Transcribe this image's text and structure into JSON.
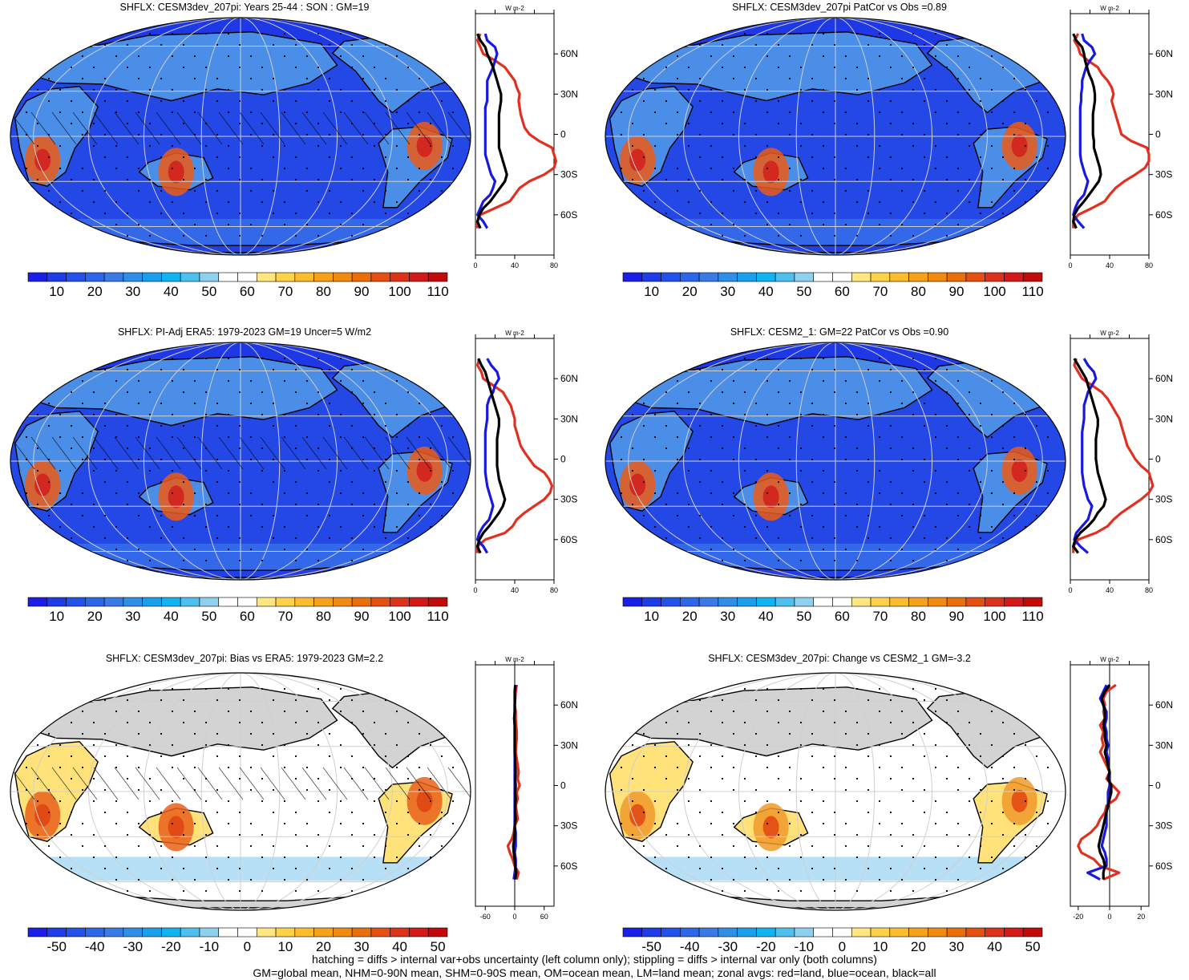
{
  "colors": {
    "seq": [
      "#1a1ee6",
      "#1e3ce8",
      "#2352ea",
      "#2d66e8",
      "#3a7ae6",
      "#2f8ee6",
      "#1aa0ea",
      "#10b4f0",
      "#4ec0ee",
      "#8ed0ee",
      "#ffffff",
      "#ffffff",
      "#ffe680",
      "#ffd24a",
      "#fbbd2e",
      "#f5a21a",
      "#f08a10",
      "#ea6e0a",
      "#e45012",
      "#dc321a",
      "#d21a1a",
      "#c20a0a"
    ],
    "div": [
      "#1a1ee6",
      "#1e3ce8",
      "#2352ea",
      "#2d66e8",
      "#3a7ae6",
      "#2f8ee6",
      "#1aa0ea",
      "#10b4f0",
      "#4ec0ee",
      "#8ed0ee",
      "#ffffff",
      "#ffffff",
      "#ffe680",
      "#ffd24a",
      "#fbbd2e",
      "#f5a21a",
      "#f08a10",
      "#ea6e0a",
      "#e45012",
      "#dc321a",
      "#d21a1a",
      "#c20a0a"
    ],
    "land": "#e23020",
    "ocean": "#1818e0",
    "all": "#000000"
  },
  "footer": {
    "line1": "hatching = diffs > internal var+obs uncertainty (left column only); stippling = diffs > internal var only (both columns)",
    "line2": "GM=global mean, NHM=0-90N mean, SHM=0-90S mean, OM=ocean mean, LM=land mean; zonal avgs: red=land, blue=ocean, black=all"
  },
  "chart_data": [
    {
      "type": "heatmap",
      "title": "SHFLX: CESM3dev_207pi: Years 25-44 : SON : GM=19",
      "colorbar_ticks": [
        "10",
        "20",
        "30",
        "40",
        "50",
        "60",
        "70",
        "80",
        "90",
        "100",
        "110"
      ],
      "zonal_unit": "W m-2",
      "lat_ticks": [
        "60N",
        "30N",
        "0",
        "30S",
        "60S"
      ],
      "zonal_xticks": [
        "0",
        "40",
        "80"
      ],
      "zonal_xlim": [
        0,
        80
      ],
      "lats": [
        75,
        70,
        65,
        60,
        55,
        50,
        45,
        40,
        35,
        30,
        25,
        20,
        15,
        10,
        5,
        0,
        -5,
        -10,
        -15,
        -20,
        -25,
        -30,
        -35,
        -40,
        -45,
        -50,
        -55,
        -60,
        -65,
        -70
      ],
      "series": [
        {
          "name": "red=land",
          "values": [
            5,
            2,
            5,
            8,
            20,
            30,
            35,
            40,
            42,
            45,
            44,
            45,
            46,
            48,
            50,
            55,
            65,
            78,
            80,
            82,
            80,
            70,
            55,
            45,
            40,
            35,
            20,
            5,
            2,
            2
          ]
        },
        {
          "name": "blue=ocean",
          "values": [
            10,
            12,
            20,
            22,
            20,
            18,
            15,
            12,
            12,
            12,
            12,
            10,
            10,
            10,
            10,
            10,
            10,
            10,
            10,
            12,
            14,
            16,
            20,
            18,
            15,
            8,
            5,
            2,
            8,
            12
          ]
        },
        {
          "name": "black=all",
          "values": [
            2,
            5,
            10,
            12,
            15,
            18,
            20,
            22,
            24,
            26,
            26,
            25,
            24,
            24,
            24,
            24,
            24,
            24,
            26,
            28,
            30,
            32,
            30,
            25,
            20,
            15,
            8,
            4,
            2,
            5
          ]
        }
      ]
    },
    {
      "type": "heatmap",
      "title": "SHFLX: CESM3dev_207pi PatCor vs Obs =0.89",
      "colorbar_ticks": [
        "10",
        "20",
        "30",
        "40",
        "50",
        "60",
        "70",
        "80",
        "90",
        "100",
        "110"
      ],
      "zonal_unit": "W m-2",
      "lat_ticks": [
        "60N",
        "30N",
        "0",
        "30S",
        "60S"
      ],
      "zonal_xticks": [
        "0",
        "40",
        "80"
      ],
      "zonal_xlim": [
        0,
        80
      ],
      "lats": [
        75,
        70,
        65,
        60,
        55,
        50,
        45,
        40,
        35,
        30,
        25,
        20,
        15,
        10,
        5,
        0,
        -5,
        -10,
        -15,
        -20,
        -25,
        -30,
        -35,
        -40,
        -45,
        -50,
        -55,
        -60,
        -65,
        -70
      ],
      "series": [
        {
          "name": "red=land",
          "values": [
            8,
            4,
            8,
            10,
            18,
            28,
            32,
            38,
            42,
            44,
            42,
            44,
            46,
            48,
            50,
            52,
            62,
            78,
            80,
            80,
            76,
            66,
            55,
            46,
            40,
            35,
            22,
            8,
            3,
            3
          ]
        },
        {
          "name": "blue=ocean",
          "values": [
            12,
            14,
            22,
            25,
            20,
            16,
            14,
            12,
            12,
            11,
            11,
            10,
            10,
            10,
            10,
            10,
            10,
            10,
            10,
            11,
            13,
            15,
            18,
            16,
            14,
            8,
            5,
            3,
            8,
            14
          ]
        },
        {
          "name": "black=all",
          "values": [
            3,
            6,
            12,
            14,
            15,
            17,
            19,
            22,
            24,
            25,
            25,
            24,
            23,
            23,
            23,
            23,
            24,
            24,
            26,
            28,
            30,
            31,
            29,
            24,
            19,
            14,
            8,
            4,
            3,
            6
          ]
        }
      ]
    },
    {
      "type": "heatmap",
      "title": "SHFLX: PI-Adj ERA5: 1979-2023 GM=19 Uncer=5 W/m2",
      "colorbar_ticks": [
        "10",
        "20",
        "30",
        "40",
        "50",
        "60",
        "70",
        "80",
        "90",
        "100",
        "110"
      ],
      "zonal_unit": "W m-2",
      "lat_ticks": [
        "60N",
        "30N",
        "0",
        "30S",
        "60S"
      ],
      "zonal_xticks": [
        "0",
        "40",
        "80"
      ],
      "zonal_xlim": [
        0,
        80
      ],
      "lats": [
        75,
        70,
        65,
        60,
        55,
        50,
        45,
        40,
        35,
        30,
        25,
        20,
        15,
        10,
        5,
        0,
        -5,
        -10,
        -15,
        -20,
        -25,
        -30,
        -35,
        -40,
        -45,
        -50,
        -55,
        -60,
        -65,
        -70
      ],
      "series": [
        {
          "name": "red=land",
          "values": [
            4,
            2,
            6,
            8,
            18,
            28,
            32,
            36,
            38,
            40,
            40,
            42,
            44,
            46,
            50,
            55,
            60,
            70,
            75,
            78,
            76,
            70,
            60,
            50,
            42,
            38,
            30,
            10,
            2,
            2
          ]
        },
        {
          "name": "blue=ocean",
          "values": [
            12,
            16,
            22,
            24,
            20,
            18,
            14,
            12,
            12,
            12,
            11,
            10,
            10,
            10,
            10,
            10,
            10,
            10,
            11,
            12,
            14,
            16,
            18,
            16,
            14,
            8,
            4,
            2,
            8,
            12
          ]
        },
        {
          "name": "black=all",
          "values": [
            3,
            6,
            10,
            12,
            14,
            16,
            18,
            20,
            22,
            24,
            24,
            23,
            22,
            22,
            22,
            22,
            22,
            23,
            24,
            26,
            28,
            30,
            28,
            24,
            19,
            14,
            8,
            4,
            2,
            5
          ]
        }
      ]
    },
    {
      "type": "heatmap",
      "title": "SHFLX: CESM2_1: GM=22 PatCor vs Obs =0.90",
      "colorbar_ticks": [
        "10",
        "20",
        "30",
        "40",
        "50",
        "60",
        "70",
        "80",
        "90",
        "100",
        "110"
      ],
      "zonal_unit": "W m-2",
      "lat_ticks": [
        "60N",
        "30N",
        "0",
        "30S",
        "60S"
      ],
      "zonal_xticks": [
        "0",
        "40",
        "80"
      ],
      "zonal_xlim": [
        0,
        80
      ],
      "lats": [
        75,
        70,
        65,
        60,
        55,
        50,
        45,
        40,
        35,
        30,
        25,
        20,
        15,
        10,
        5,
        0,
        -5,
        -10,
        -15,
        -20,
        -25,
        -30,
        -35,
        -40,
        -45,
        -50,
        -55,
        -60,
        -65,
        -70
      ],
      "series": [
        {
          "name": "red=land",
          "values": [
            6,
            4,
            8,
            12,
            22,
            32,
            38,
            42,
            46,
            50,
            52,
            54,
            56,
            58,
            62,
            66,
            72,
            80,
            82,
            84,
            80,
            72,
            62,
            52,
            44,
            38,
            26,
            8,
            3,
            3
          ]
        },
        {
          "name": "blue=ocean",
          "values": [
            14,
            18,
            24,
            26,
            22,
            18,
            16,
            14,
            14,
            14,
            13,
            12,
            12,
            12,
            12,
            12,
            12,
            12,
            13,
            14,
            16,
            18,
            22,
            20,
            18,
            12,
            6,
            4,
            10,
            18
          ]
        },
        {
          "name": "black=all",
          "values": [
            4,
            8,
            12,
            16,
            18,
            20,
            22,
            24,
            26,
            28,
            28,
            27,
            26,
            26,
            26,
            26,
            27,
            28,
            30,
            32,
            34,
            36,
            34,
            28,
            24,
            18,
            10,
            5,
            3,
            8
          ]
        }
      ]
    },
    {
      "type": "heatmap",
      "title": "SHFLX: CESM3dev_207pi: Bias vs ERA5: 1979-2023  GM=2.2",
      "colorbar_ticks": [
        "-50",
        "-40",
        "-30",
        "-20",
        "-10",
        "0",
        "10",
        "20",
        "30",
        "40",
        "50"
      ],
      "zonal_unit": "W m-2",
      "lat_ticks": [
        "60N",
        "30N",
        "0",
        "30S",
        "60S"
      ],
      "zonal_xticks": [
        "-60",
        "0",
        "60"
      ],
      "zonal_xlim": [
        -80,
        80
      ],
      "lats": [
        75,
        70,
        65,
        60,
        55,
        50,
        45,
        40,
        35,
        30,
        25,
        20,
        15,
        10,
        5,
        0,
        -5,
        -10,
        -15,
        -20,
        -25,
        -30,
        -35,
        -40,
        -45,
        -50,
        -55,
        -60,
        -65,
        -70
      ],
      "series": [
        {
          "name": "red=land",
          "values": [
            4,
            2,
            1,
            0,
            2,
            2,
            3,
            4,
            4,
            3,
            2,
            4,
            6,
            8,
            6,
            10,
            4,
            6,
            2,
            4,
            6,
            0,
            -2,
            -6,
            -14,
            -10,
            -4,
            0,
            8,
            4
          ]
        },
        {
          "name": "blue=ocean",
          "values": [
            2,
            0,
            1,
            0,
            0,
            -1,
            0,
            0,
            0,
            0,
            0,
            0,
            0,
            0,
            0,
            0,
            0,
            0,
            0,
            0,
            0,
            0,
            2,
            2,
            2,
            0,
            2,
            2,
            0,
            -2
          ]
        },
        {
          "name": "black=all",
          "values": [
            1,
            0,
            0,
            0,
            0,
            -1,
            0,
            0,
            0,
            0,
            0,
            1,
            1,
            2,
            1,
            2,
            1,
            2,
            1,
            1,
            2,
            0,
            0,
            -1,
            -3,
            -2,
            0,
            1,
            3,
            1
          ]
        }
      ]
    },
    {
      "type": "heatmap",
      "title": "SHFLX: CESM3dev_207pi: Change vs CESM2_1 GM=-3.2",
      "colorbar_ticks": [
        "-50",
        "-40",
        "-30",
        "-20",
        "-10",
        "0",
        "10",
        "20",
        "30",
        "40",
        "50"
      ],
      "zonal_unit": "W m-2",
      "lat_ticks": [
        "60N",
        "30N",
        "0",
        "30S",
        "60S"
      ],
      "zonal_xticks": [
        "-20",
        "0",
        "20"
      ],
      "zonal_xlim": [
        -25,
        25
      ],
      "lats": [
        75,
        70,
        65,
        60,
        55,
        50,
        45,
        40,
        35,
        30,
        25,
        20,
        15,
        10,
        5,
        0,
        -5,
        -10,
        -15,
        -20,
        -25,
        -30,
        -35,
        -40,
        -45,
        -50,
        -55,
        -60,
        -65,
        -70
      ],
      "series": [
        {
          "name": "red=land",
          "values": [
            4,
            -2,
            -4,
            -3,
            -4,
            -3,
            -6,
            -4,
            -5,
            -4,
            -6,
            -4,
            -2,
            0,
            -2,
            2,
            6,
            4,
            -2,
            -3,
            -6,
            -8,
            -12,
            -18,
            -20,
            -18,
            -10,
            -6,
            6,
            -4
          ]
        },
        {
          "name": "blue=ocean",
          "values": [
            -2,
            -4,
            -6,
            -4,
            -2,
            -2,
            -3,
            -2,
            -2,
            -1,
            -2,
            -1,
            -1,
            0,
            0,
            0,
            -1,
            -1,
            -1,
            -2,
            -2,
            -2,
            -3,
            -4,
            -5,
            -3,
            -2,
            -2,
            -14,
            -6
          ]
        },
        {
          "name": "black=all",
          "values": [
            0,
            -3,
            -5,
            -4,
            -3,
            -3,
            -4,
            -3,
            -3,
            -2,
            -3,
            -2,
            -1,
            0,
            -1,
            1,
            1,
            0,
            -1,
            -2,
            -3,
            -4,
            -5,
            -6,
            -7,
            -6,
            -4,
            -3,
            -4,
            -4
          ]
        }
      ]
    }
  ]
}
